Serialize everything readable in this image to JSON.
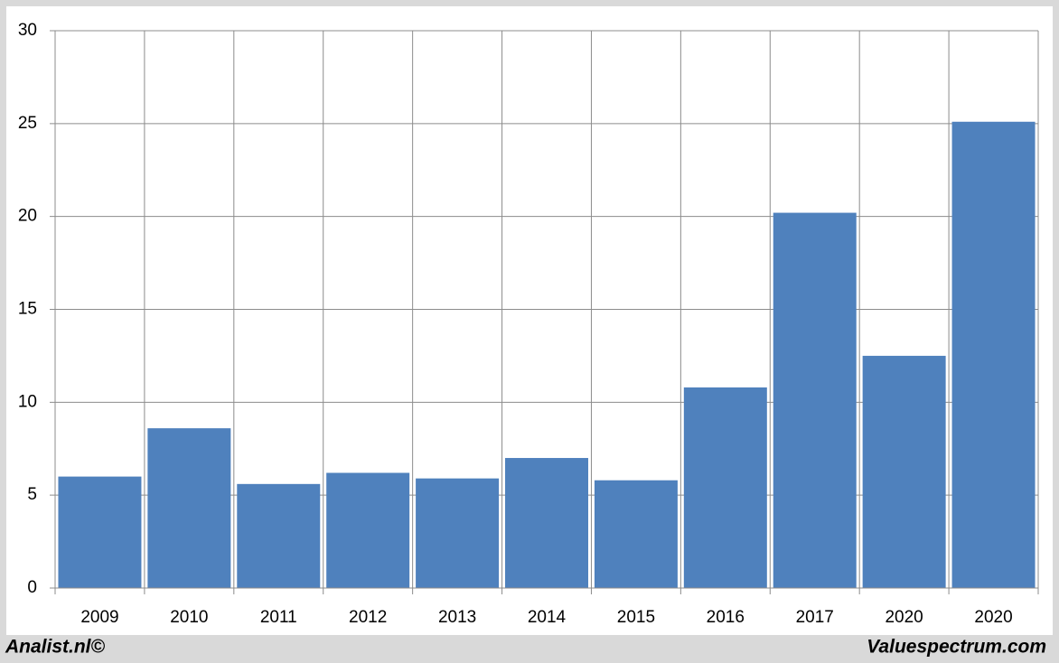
{
  "chart_data": {
    "type": "bar",
    "categories": [
      "2009",
      "2010",
      "2011",
      "2012",
      "2013",
      "2014",
      "2015",
      "2016",
      "2017",
      "2020",
      "2020"
    ],
    "values": [
      6.0,
      8.6,
      5.6,
      6.2,
      5.9,
      7.0,
      5.8,
      10.8,
      20.2,
      12.5,
      25.1
    ],
    "color": "#4f81bd",
    "ylim": [
      0,
      30
    ],
    "yticks": [
      0,
      5,
      10,
      15,
      20,
      25,
      30
    ],
    "grid": true
  },
  "footer": {
    "left": "Analist.nl©",
    "right": "Valuespectrum.com"
  }
}
